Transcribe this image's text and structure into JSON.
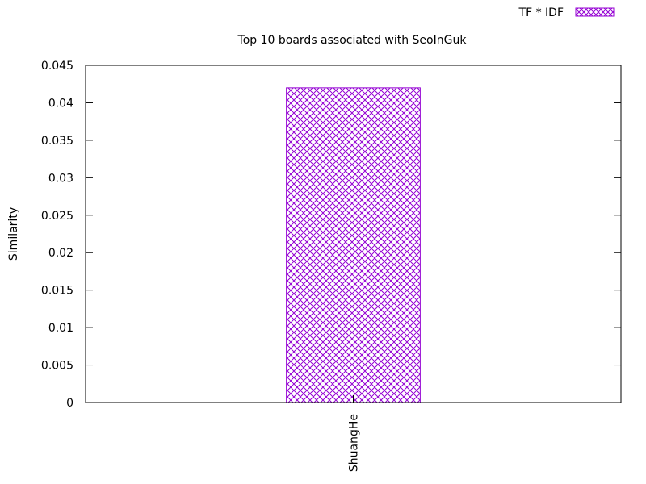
{
  "chart_data": {
    "type": "bar",
    "title": "Top 10 boards associated with SeoInGuk",
    "xlabel": "",
    "ylabel": "Similarity",
    "categories": [
      "ShuangHe"
    ],
    "series": [
      {
        "name": "TF * IDF",
        "values": [
          0.042
        ],
        "color": "#9400d3",
        "pattern": "crosshatch"
      }
    ],
    "ylim": [
      0,
      0.045
    ],
    "yticks": [
      "0",
      "0.005",
      "0.01",
      "0.015",
      "0.02",
      "0.025",
      "0.03",
      "0.035",
      "0.04",
      "0.045"
    ],
    "grid": false,
    "legend_position": "top-right"
  }
}
